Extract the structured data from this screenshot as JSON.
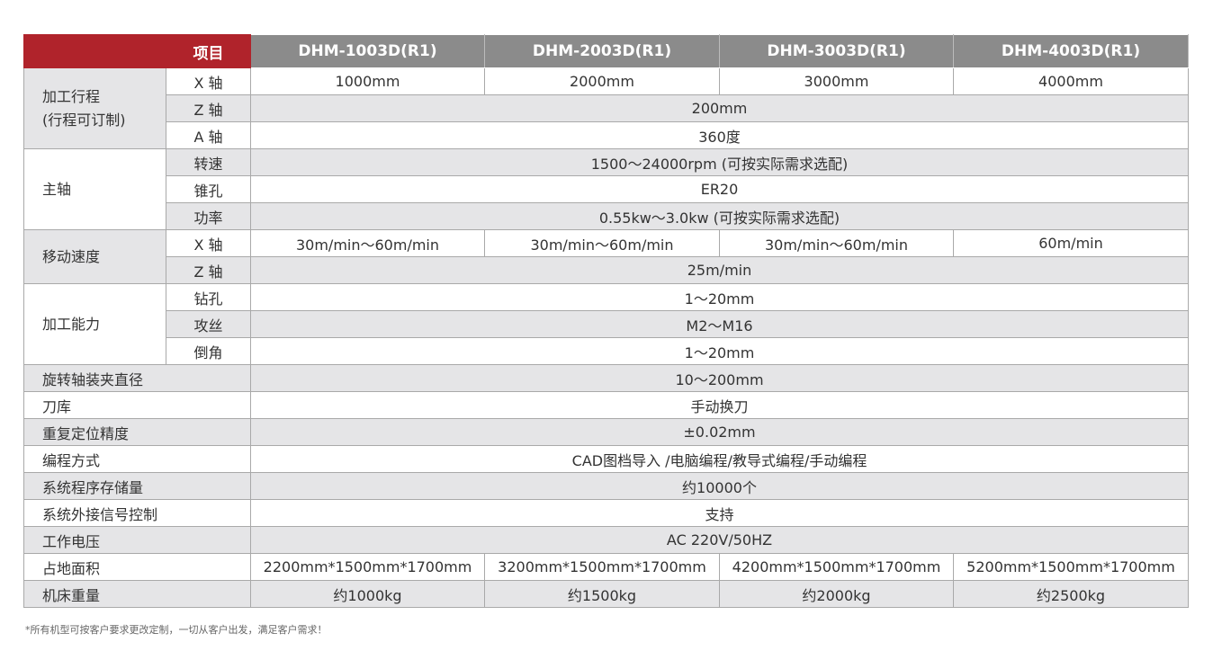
{
  "header": {
    "item_label": "项目",
    "models": [
      "DHM-1003D(R1)",
      "DHM-2003D(R1)",
      "DHM-3003D(R1)",
      "DHM-4003D(R1)"
    ]
  },
  "groups": {
    "travel": {
      "label1": "加工行程",
      "label2": "(行程可订制)",
      "x_label": "X 轴",
      "x": [
        "1000mm",
        "2000mm",
        "3000mm",
        "4000mm"
      ],
      "z_label": "Z 轴",
      "z": "200mm",
      "a_label": "A 轴",
      "a": "360度"
    },
    "spindle": {
      "label": "主轴",
      "speed_label": "转速",
      "speed": "1500～24000rpm (可按实际需求选配)",
      "taper_label": "锥孔",
      "taper": "ER20",
      "power_label": "功率",
      "power": "0.55kw～3.0kw (可按实际需求选配)"
    },
    "move": {
      "label": "移动速度",
      "x_label": "X 轴",
      "x": [
        "30m/min～60m/min",
        "30m/min～60m/min",
        "30m/min～60m/min",
        "60m/min"
      ],
      "z_label": "Z 轴",
      "z": "25m/min"
    },
    "capacity": {
      "label": "加工能力",
      "drill_label": "钻孔",
      "drill": "1～20mm",
      "tap_label": "攻丝",
      "tap": "M2～M16",
      "chamfer_label": "倒角",
      "chamfer": "1～20mm"
    }
  },
  "rows": [
    {
      "label": "旋转轴装夹直径",
      "value": "10～200mm"
    },
    {
      "label": "刀库",
      "value": "手动换刀"
    },
    {
      "label": "重复定位精度",
      "value": "±0.02mm"
    },
    {
      "label": "编程方式",
      "value": "CAD图档导入 /电脑编程/教导式编程/手动编程"
    },
    {
      "label": "系统程序存储量",
      "value": "约10000个"
    },
    {
      "label": "系统外接信号控制",
      "value": "支持"
    },
    {
      "label": "工作电压",
      "value": "AC 220V/50HZ"
    }
  ],
  "footprint": {
    "label": "占地面积",
    "values": [
      "2200mm*1500mm*1700mm",
      "3200mm*1500mm*1700mm",
      "4200mm*1500mm*1700mm",
      "5200mm*1500mm*1700mm"
    ]
  },
  "weight": {
    "label": "机床重量",
    "values": [
      "约1000kg",
      "约1500kg",
      "约2000kg",
      "约2500kg"
    ]
  },
  "footnote": "*所有机型可按客户要求更改定制，一切从客户出发，满足客户需求！",
  "colors": {
    "header_red": "#b0232b",
    "header_gray": "#8b8b8b",
    "row_gray": "#e5e5e7"
  }
}
